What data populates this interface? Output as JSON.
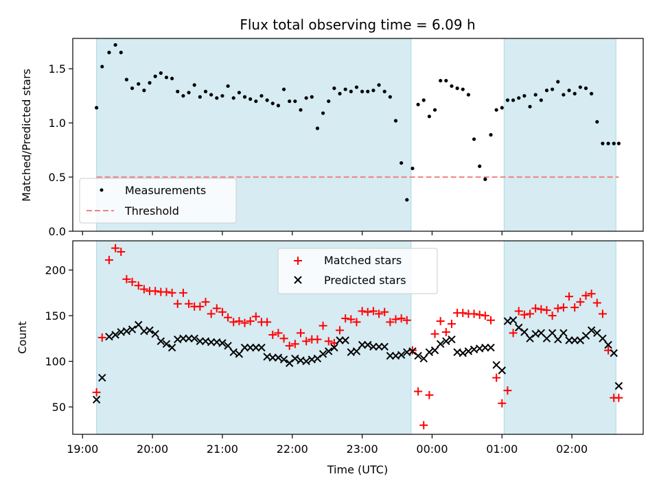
{
  "chart_data": [
    {
      "type": "scatter",
      "title": "Flux total observing time = 6.09 h",
      "xlabel": "",
      "ylabel": "Matched/Predicted stars",
      "ylim": [
        0,
        1.78
      ],
      "yticks": [
        0.0,
        0.5,
        1.0,
        1.5
      ],
      "ytick_labels": [
        "0.0",
        "0.5",
        "1.0",
        "1.5"
      ],
      "x_unit": "hours since 19:00 UTC",
      "xlim": [
        -0.14,
        8.02
      ],
      "shaded_intervals": [
        [
          0.2,
          4.7
        ],
        [
          6.03,
          7.63
        ]
      ],
      "shade_color": "#add8e6",
      "legend_position": "lower-left",
      "threshold": {
        "name": "Threshold",
        "value": 0.5,
        "color": "#f08080"
      },
      "series": [
        {
          "name": "Measurements",
          "color": "#000000",
          "x": [
            0.2,
            0.28,
            0.38,
            0.47,
            0.55,
            0.63,
            0.71,
            0.8,
            0.88,
            0.96,
            1.04,
            1.12,
            1.2,
            1.28,
            1.36,
            1.44,
            1.52,
            1.6,
            1.68,
            1.76,
            1.84,
            1.92,
            2.0,
            2.08,
            2.16,
            2.24,
            2.32,
            2.4,
            2.48,
            2.56,
            2.64,
            2.72,
            2.8,
            2.88,
            2.96,
            3.04,
            3.12,
            3.2,
            3.28,
            3.36,
            3.44,
            3.52,
            3.6,
            3.68,
            3.76,
            3.84,
            3.92,
            4.0,
            4.08,
            4.16,
            4.24,
            4.32,
            4.4,
            4.48,
            4.56,
            4.64,
            4.72,
            4.8,
            4.88,
            4.96,
            5.04,
            5.12,
            5.2,
            5.28,
            5.36,
            5.44,
            5.52,
            5.6,
            5.68,
            5.76,
            5.84,
            5.92,
            6.0,
            6.08,
            6.16,
            6.24,
            6.32,
            6.4,
            6.48,
            6.56,
            6.64,
            6.72,
            6.8,
            6.88,
            6.96,
            7.04,
            7.12,
            7.2,
            7.28,
            7.36,
            7.44,
            7.52,
            7.6,
            7.67
          ],
          "y": [
            1.14,
            1.52,
            1.65,
            1.72,
            1.65,
            1.4,
            1.32,
            1.36,
            1.3,
            1.37,
            1.43,
            1.46,
            1.42,
            1.41,
            1.29,
            1.25,
            1.28,
            1.35,
            1.24,
            1.29,
            1.26,
            1.23,
            1.25,
            1.34,
            1.23,
            1.28,
            1.24,
            1.22,
            1.2,
            1.25,
            1.21,
            1.18,
            1.16,
            1.31,
            1.2,
            1.2,
            1.12,
            1.23,
            1.24,
            0.95,
            1.09,
            1.2,
            1.32,
            1.27,
            1.31,
            1.29,
            1.33,
            1.29,
            1.29,
            1.3,
            1.35,
            1.29,
            1.24,
            1.02,
            0.63,
            0.29,
            0.58,
            1.17,
            1.21,
            1.06,
            1.12,
            1.39,
            1.39,
            1.34,
            1.32,
            1.31,
            1.26,
            0.85,
            0.6,
            0.48,
            0.89,
            1.12,
            1.14,
            1.21,
            1.21,
            1.23,
            1.25,
            1.15,
            1.26,
            1.21,
            1.3,
            1.31,
            1.38,
            1.26,
            1.3,
            1.27,
            1.33,
            1.32,
            1.27,
            1.01,
            0.81,
            0.81,
            0.81,
            0.81
          ]
        }
      ]
    },
    {
      "type": "scatter",
      "title": "",
      "xlabel": "Time (UTC)",
      "ylabel": "Count",
      "ylim": [
        20,
        232
      ],
      "yticks": [
        50,
        100,
        150,
        200
      ],
      "ytick_labels": [
        "50",
        "100",
        "150",
        "200"
      ],
      "x_unit": "hours since 19:00 UTC",
      "xlim": [
        -0.14,
        8.02
      ],
      "xticks": [
        0,
        1,
        2,
        3,
        4,
        5,
        6,
        7
      ],
      "xtick_labels": [
        "19:00",
        "20:00",
        "21:00",
        "22:00",
        "23:00",
        "00:00",
        "01:00",
        "02:00"
      ],
      "shaded_intervals": [
        [
          0.2,
          4.7
        ],
        [
          6.03,
          7.63
        ]
      ],
      "shade_color": "#add8e6",
      "legend_position": "upper-center",
      "series": [
        {
          "name": "Matched stars",
          "marker": "plus",
          "color": "#ff0000",
          "x": [
            0.2,
            0.28,
            0.38,
            0.47,
            0.55,
            0.63,
            0.71,
            0.8,
            0.88,
            0.96,
            1.04,
            1.12,
            1.2,
            1.28,
            1.36,
            1.44,
            1.52,
            1.6,
            1.68,
            1.76,
            1.84,
            1.92,
            2.0,
            2.08,
            2.16,
            2.24,
            2.32,
            2.4,
            2.48,
            2.56,
            2.64,
            2.72,
            2.8,
            2.88,
            2.96,
            3.04,
            3.12,
            3.2,
            3.28,
            3.36,
            3.44,
            3.52,
            3.6,
            3.68,
            3.76,
            3.84,
            3.92,
            4.0,
            4.08,
            4.16,
            4.24,
            4.32,
            4.4,
            4.48,
            4.56,
            4.64,
            4.72,
            4.8,
            4.88,
            4.96,
            5.04,
            5.12,
            5.2,
            5.28,
            5.36,
            5.44,
            5.52,
            5.6,
            5.68,
            5.76,
            5.84,
            5.92,
            6.0,
            6.08,
            6.16,
            6.24,
            6.32,
            6.4,
            6.48,
            6.56,
            6.64,
            6.72,
            6.8,
            6.88,
            6.96,
            7.04,
            7.12,
            7.2,
            7.28,
            7.36,
            7.44,
            7.52,
            7.6,
            7.67
          ],
          "y": [
            66,
            126,
            211,
            224,
            220,
            190,
            187,
            183,
            179,
            177,
            177,
            176,
            176,
            175,
            163,
            175,
            163,
            160,
            160,
            165,
            152,
            158,
            154,
            148,
            143,
            144,
            142,
            144,
            149,
            143,
            143,
            129,
            131,
            125,
            117,
            119,
            131,
            122,
            124,
            124,
            139,
            122,
            120,
            134,
            147,
            146,
            143,
            155,
            154,
            155,
            152,
            154,
            143,
            146,
            147,
            145,
            112,
            67,
            30,
            63,
            130,
            144,
            132,
            141,
            153,
            153,
            152,
            152,
            151,
            150,
            145,
            82,
            54,
            68,
            131,
            155,
            151,
            152,
            158,
            157,
            156,
            150,
            158,
            159,
            171,
            159,
            165,
            172,
            174,
            164,
            152,
            112,
            60,
            60
          ]
        },
        {
          "name": "Predicted stars",
          "marker": "x",
          "color": "#000000",
          "x": [
            0.2,
            0.28,
            0.38,
            0.47,
            0.55,
            0.63,
            0.71,
            0.8,
            0.88,
            0.96,
            1.04,
            1.12,
            1.2,
            1.28,
            1.36,
            1.44,
            1.52,
            1.6,
            1.68,
            1.76,
            1.84,
            1.92,
            2.0,
            2.08,
            2.16,
            2.24,
            2.32,
            2.4,
            2.48,
            2.56,
            2.64,
            2.72,
            2.8,
            2.88,
            2.96,
            3.04,
            3.12,
            3.2,
            3.28,
            3.36,
            3.44,
            3.52,
            3.6,
            3.68,
            3.76,
            3.84,
            3.92,
            4.0,
            4.08,
            4.16,
            4.24,
            4.32,
            4.4,
            4.48,
            4.56,
            4.64,
            4.72,
            4.8,
            4.88,
            4.96,
            5.04,
            5.12,
            5.2,
            5.28,
            5.36,
            5.44,
            5.52,
            5.6,
            5.68,
            5.76,
            5.84,
            5.92,
            6.0,
            6.08,
            6.16,
            6.24,
            6.32,
            6.4,
            6.48,
            6.56,
            6.64,
            6.72,
            6.8,
            6.88,
            6.96,
            7.04,
            7.12,
            7.2,
            7.28,
            7.36,
            7.44,
            7.52,
            7.6,
            7.67
          ],
          "y": [
            58,
            82,
            127,
            129,
            132,
            133,
            135,
            140,
            133,
            134,
            130,
            122,
            119,
            115,
            124,
            125,
            125,
            125,
            122,
            122,
            121,
            121,
            120,
            117,
            110,
            108,
            115,
            115,
            115,
            115,
            105,
            104,
            104,
            102,
            98,
            103,
            101,
            100,
            102,
            103,
            108,
            111,
            115,
            123,
            123,
            110,
            111,
            118,
            118,
            116,
            116,
            116,
            106,
            106,
            107,
            110,
            111,
            106,
            103,
            110,
            112,
            119,
            122,
            124,
            110,
            109,
            111,
            113,
            114,
            115,
            115,
            96,
            90,
            144,
            145,
            137,
            132,
            125,
            130,
            131,
            125,
            131,
            124,
            131,
            123,
            123,
            123,
            128,
            134,
            131,
            125,
            118,
            109,
            73
          ]
        }
      ]
    }
  ]
}
